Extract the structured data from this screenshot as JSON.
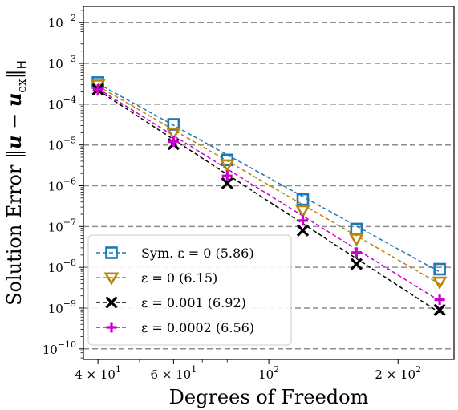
{
  "chart_data": {
    "type": "scatter",
    "xlabel": "Degrees of Freedom",
    "ylabel": "Solution Error ||u − u_ex||_H",
    "xscale": "log",
    "yscale": "log",
    "xlim": [
      37,
      270
    ],
    "ylim": [
      5.5e-11,
      0.025
    ],
    "grid": "horizontal dashed",
    "legend_position": "lower-left",
    "x_ticks": [
      {
        "value": 40,
        "mantissa": "4",
        "exp": "1"
      },
      {
        "value": 60,
        "mantissa": "6",
        "exp": "1"
      },
      {
        "value": 100,
        "mantissa": "",
        "exp": "2"
      },
      {
        "value": 200,
        "mantissa": "2",
        "exp": "2"
      }
    ],
    "y_ticks": [
      {
        "value": 1e-10,
        "exp": "−10"
      },
      {
        "value": 1e-09,
        "exp": "−9"
      },
      {
        "value": 1e-08,
        "exp": "−8"
      },
      {
        "value": 1e-07,
        "exp": "−7"
      },
      {
        "value": 1e-06,
        "exp": "−6"
      },
      {
        "value": 1e-05,
        "exp": "−5"
      },
      {
        "value": 0.0001,
        "exp": "−4"
      },
      {
        "value": 0.001,
        "exp": "−3"
      },
      {
        "value": 0.01,
        "exp": "−2"
      }
    ],
    "x": [
      40,
      60,
      80,
      120,
      160,
      250
    ],
    "series": [
      {
        "name": "Sym. ε = 0 (5.86)",
        "marker": "square",
        "color": "#1f77b4",
        "values": [
          0.00034,
          3.2e-05,
          4.3e-06,
          4.6e-07,
          8.7e-08,
          9e-09
        ],
        "fit": [
          [
            40,
            0.00032
          ],
          [
            250,
            7.7e-09
          ]
        ]
      },
      {
        "name": "ε = 0 (6.15)",
        "marker": "triangle-down",
        "color": "#b8860b",
        "values": [
          0.0003,
          2e-05,
          3.3e-06,
          2.5e-07,
          5e-08,
          4.4e-09
        ],
        "fit": [
          [
            40,
            0.00028
          ],
          [
            250,
            3.9e-09
          ]
        ]
      },
      {
        "name": "ε = 0.001 (6.92)",
        "marker": "x",
        "color": "#000000",
        "values": [
          0.00023,
          1.05e-05,
          1.15e-06,
          8e-08,
          1.2e-08,
          9e-10
        ],
        "fit": [
          [
            40,
            0.00022
          ],
          [
            250,
            7.7e-10
          ]
        ]
      },
      {
        "name": "ε = 0.0002 (6.56)",
        "marker": "plus",
        "color": "#cc00cc",
        "values": [
          0.00023,
          1.2e-05,
          1.75e-06,
          1.4e-07,
          2.3e-08,
          1.6e-09
        ],
        "fit": [
          [
            40,
            0.00024
          ],
          [
            250,
            1.5e-09
          ]
        ]
      }
    ]
  }
}
